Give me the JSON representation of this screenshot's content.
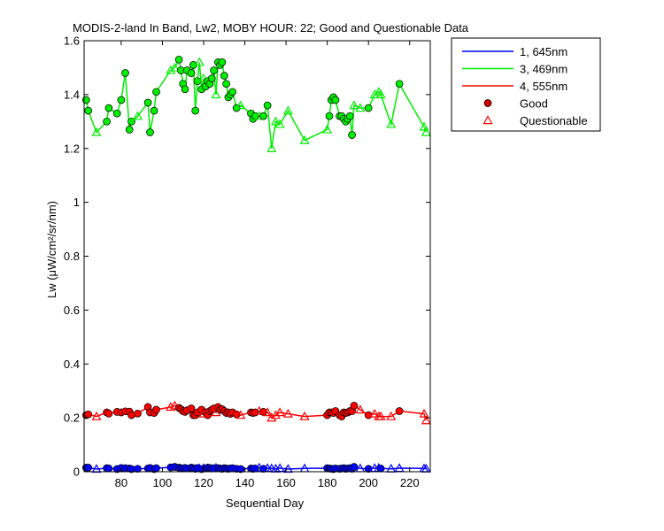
{
  "chart_data": {
    "type": "line",
    "title": "MODIS-2-land In Band,  Lw2, MOBY HOUR: 22;  Good and Questionable Data",
    "xlabel": "Sequential Day",
    "ylabel": "Lw (μW/cm²/sr/nm)",
    "xlim": [
      62,
      230
    ],
    "ylim": [
      0,
      1.6
    ],
    "xticks": [
      80,
      100,
      120,
      140,
      160,
      180,
      200,
      220
    ],
    "yticks": [
      0,
      0.2,
      0.4,
      0.6,
      0.8,
      1,
      1.2,
      1.4,
      1.6
    ],
    "ytick_labels": [
      "0",
      "0.2",
      "0.4",
      "0.6",
      "0.8",
      "1",
      "1.2",
      "1.4",
      "1.6"
    ],
    "grid": false,
    "legend_position": "outside-top-right",
    "legend": [
      {
        "label": "1, 645nm",
        "kind": "line",
        "color": "#0000ff"
      },
      {
        "label": "3, 469nm",
        "kind": "line",
        "color": "#00ee00"
      },
      {
        "label": "4, 555nm",
        "kind": "line",
        "color": "#ff0000"
      },
      {
        "label": "Good",
        "kind": "marker-circle",
        "color": "#cc0000"
      },
      {
        "label": "Questionable",
        "kind": "marker-triangle",
        "color": "#ff0000"
      }
    ],
    "x": [
      63,
      64,
      68,
      73,
      74,
      78,
      80,
      82,
      84,
      85,
      88,
      93,
      94,
      96,
      97,
      104,
      106,
      108,
      109,
      110,
      111,
      112,
      114,
      115,
      116,
      117,
      118,
      119,
      120,
      121,
      122,
      123,
      124,
      125,
      126,
      127,
      128,
      129,
      130,
      131,
      132,
      133,
      134,
      136,
      138,
      143,
      144,
      145,
      147,
      149,
      151,
      153,
      155,
      157,
      161,
      169,
      180,
      181,
      182,
      183,
      184,
      186,
      187,
      188,
      189,
      190,
      191,
      192,
      193,
      196,
      200,
      203,
      205,
      206,
      211,
      215,
      227,
      228
    ],
    "series": [
      {
        "name": "1, 645nm",
        "color": "#0000ff",
        "values": [
          0.015,
          0.015,
          0.01,
          0.013,
          0.012,
          0.01,
          0.014,
          0.013,
          0.012,
          0.01,
          0.011,
          0.012,
          0.014,
          0.01,
          0.013,
          0.016,
          0.018,
          0.015,
          0.013,
          0.012,
          0.014,
          0.012,
          0.015,
          0.013,
          0.011,
          0.014,
          0.012,
          0.01,
          0.013,
          0.012,
          0.015,
          0.014,
          0.012,
          0.013,
          0.014,
          0.013,
          0.012,
          0.011,
          0.013,
          0.012,
          0.011,
          0.012,
          0.013,
          0.011,
          0.01,
          0.012,
          0.011,
          0.012,
          0.015,
          0.011,
          0.013,
          0.012,
          0.011,
          0.013,
          0.01,
          0.012,
          0.013,
          0.012,
          0.011,
          0.01,
          0.012,
          0.011,
          0.012,
          0.013,
          0.011,
          0.012,
          0.013,
          0.011,
          0.018,
          0.012,
          0.011,
          0.013,
          0.014,
          0.012,
          0.011,
          0.013,
          0.012,
          0.011
        ],
        "good": [
          1,
          1,
          0,
          1,
          1,
          1,
          1,
          1,
          1,
          1,
          1,
          1,
          1,
          1,
          1,
          1,
          1,
          1,
          1,
          1,
          1,
          1,
          1,
          1,
          1,
          1,
          0,
          1,
          0,
          1,
          1,
          1,
          1,
          1,
          0,
          1,
          1,
          1,
          1,
          1,
          1,
          1,
          1,
          1,
          1,
          1,
          1,
          1,
          0,
          1,
          0,
          0,
          0,
          0,
          0,
          0,
          1,
          1,
          1,
          1,
          1,
          1,
          1,
          1,
          1,
          1,
          1,
          1,
          1,
          0,
          1,
          0,
          0,
          1,
          0,
          0,
          0,
          0
        ]
      },
      {
        "name": "3, 469nm",
        "color": "#00ee00",
        "values": [
          1.38,
          1.34,
          1.26,
          1.3,
          1.35,
          1.33,
          1.38,
          1.48,
          1.27,
          1.3,
          1.32,
          1.37,
          1.26,
          1.34,
          1.41,
          1.49,
          1.5,
          1.53,
          1.49,
          1.44,
          1.42,
          1.49,
          1.48,
          1.51,
          1.34,
          1.45,
          1.52,
          1.42,
          1.46,
          1.43,
          1.45,
          1.44,
          1.46,
          1.49,
          1.4,
          1.52,
          1.51,
          1.52,
          1.47,
          1.44,
          1.39,
          1.4,
          1.41,
          1.35,
          1.36,
          1.33,
          1.31,
          1.32,
          1.32,
          1.32,
          1.36,
          1.2,
          1.3,
          1.29,
          1.34,
          1.23,
          1.27,
          1.32,
          1.38,
          1.39,
          1.38,
          1.32,
          1.32,
          1.31,
          1.3,
          1.31,
          1.32,
          1.25,
          1.36,
          1.35,
          1.35,
          1.4,
          1.41,
          1.4,
          1.29,
          1.44,
          1.28,
          1.26
        ],
        "good": [
          1,
          1,
          0,
          1,
          1,
          1,
          1,
          1,
          1,
          1,
          0,
          1,
          1,
          1,
          1,
          0,
          0,
          1,
          1,
          1,
          1,
          1,
          1,
          1,
          1,
          1,
          0,
          1,
          0,
          1,
          1,
          1,
          1,
          1,
          0,
          1,
          1,
          1,
          1,
          1,
          1,
          1,
          1,
          1,
          0,
          1,
          1,
          1,
          0,
          1,
          1,
          0,
          0,
          0,
          0,
          0,
          0,
          1,
          1,
          1,
          1,
          1,
          1,
          1,
          1,
          1,
          1,
          1,
          0,
          0,
          1,
          0,
          0,
          0,
          0,
          1,
          0,
          0
        ]
      },
      {
        "name": "4, 555nm",
        "color": "#ff0000",
        "values": [
          0.21,
          0.213,
          0.205,
          0.22,
          0.216,
          0.222,
          0.22,
          0.224,
          0.223,
          0.21,
          0.216,
          0.24,
          0.22,
          0.218,
          0.23,
          0.24,
          0.245,
          0.237,
          0.232,
          0.225,
          0.222,
          0.228,
          0.235,
          0.21,
          0.21,
          0.22,
          0.225,
          0.23,
          0.215,
          0.22,
          0.21,
          0.225,
          0.23,
          0.235,
          0.22,
          0.24,
          0.23,
          0.232,
          0.225,
          0.218,
          0.22,
          0.215,
          0.22,
          0.213,
          0.21,
          0.22,
          0.218,
          0.22,
          0.225,
          0.222,
          0.22,
          0.2,
          0.21,
          0.22,
          0.215,
          0.205,
          0.21,
          0.22,
          0.22,
          0.218,
          0.225,
          0.21,
          0.205,
          0.22,
          0.218,
          0.22,
          0.225,
          0.225,
          0.245,
          0.23,
          0.21,
          0.215,
          0.205,
          0.205,
          0.205,
          0.225,
          0.215,
          0.19
        ],
        "good": [
          1,
          1,
          0,
          1,
          1,
          1,
          1,
          1,
          1,
          1,
          1,
          1,
          1,
          1,
          1,
          0,
          0,
          1,
          1,
          1,
          1,
          1,
          1,
          1,
          1,
          1,
          0,
          1,
          0,
          1,
          1,
          1,
          1,
          1,
          0,
          1,
          1,
          1,
          1,
          1,
          1,
          1,
          1,
          1,
          0,
          1,
          1,
          1,
          0,
          1,
          0,
          0,
          0,
          0,
          0,
          0,
          1,
          1,
          1,
          1,
          1,
          1,
          1,
          1,
          1,
          1,
          1,
          1,
          1,
          0,
          1,
          0,
          0,
          0,
          0,
          1,
          0,
          0
        ]
      }
    ]
  }
}
